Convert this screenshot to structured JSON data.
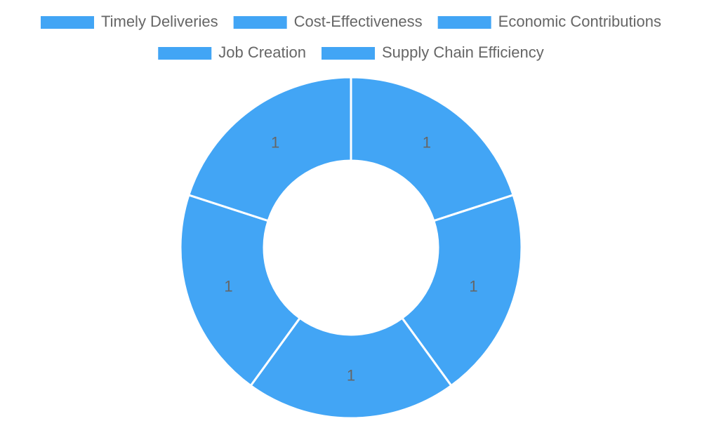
{
  "chart_data": {
    "type": "doughnut",
    "categories": [
      "Timely Deliveries",
      "Cost-Effectiveness",
      "Economic Contributions",
      "Job Creation",
      "Supply Chain Efficiency"
    ],
    "values": [
      1,
      1,
      1,
      1,
      1
    ],
    "color": "#42a5f5"
  }
}
